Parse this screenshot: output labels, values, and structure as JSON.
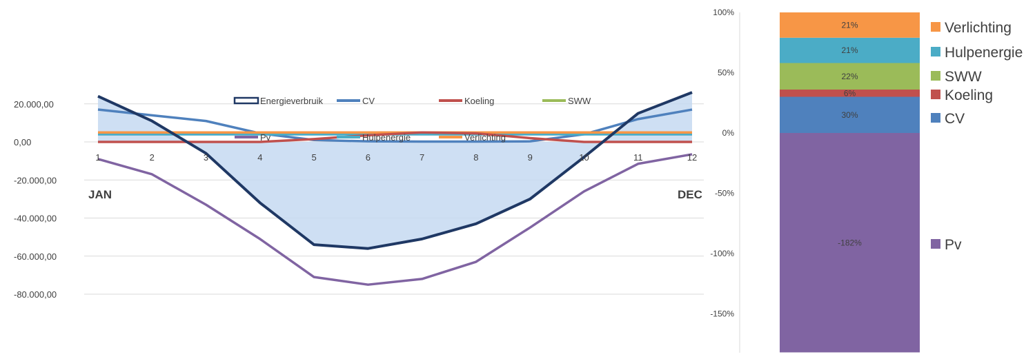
{
  "chart_data": [
    {
      "type": "line",
      "x": [
        1,
        2,
        3,
        4,
        5,
        6,
        7,
        8,
        9,
        10,
        11,
        12
      ],
      "x_markers": {
        "start": "JAN",
        "end": "DEC"
      },
      "ylim": [
        -90000,
        30000
      ],
      "yticks": [
        "20.000,00",
        "0,00",
        "-20.000,00",
        "-40.000,00",
        "-60.000,00",
        "-80.000,00"
      ],
      "ytick_values": [
        20000,
        0,
        -20000,
        -40000,
        -60000,
        -80000
      ],
      "legend": [
        "Energieverbruik",
        "CV",
        "Koeling",
        "SWW",
        "Pv",
        "Hulpenergie",
        "Verlichting"
      ],
      "series": [
        {
          "name": "Energieverbruik",
          "color": "#1F3864",
          "fill": "#C5D9F1",
          "values": [
            24000,
            11000,
            -6000,
            -32000,
            -54000,
            -56000,
            -51000,
            -43000,
            -30000,
            -8000,
            15000,
            26000
          ]
        },
        {
          "name": "CV",
          "color": "#4F81BD",
          "values": [
            17000,
            14000,
            11000,
            4500,
            1000,
            300,
            200,
            200,
            300,
            4000,
            12000,
            17000
          ]
        },
        {
          "name": "Koeling",
          "color": "#C0504D",
          "values": [
            0,
            0,
            0,
            0,
            1500,
            3500,
            5000,
            4500,
            2000,
            0,
            0,
            0
          ]
        },
        {
          "name": "SWW",
          "color": "#9BBB59",
          "values": [
            5000,
            4500,
            5000,
            5000,
            5000,
            4800,
            5000,
            5000,
            5000,
            5000,
            5000,
            5000
          ]
        },
        {
          "name": "Pv",
          "color": "#8064A2",
          "values": [
            -9000,
            -17000,
            -33000,
            -51000,
            -71000,
            -75000,
            -72000,
            -63000,
            -45000,
            -26000,
            -11500,
            -6500
          ]
        },
        {
          "name": "Hulpenergie",
          "color": "#4BACC6",
          "values": [
            4000,
            4000,
            4000,
            4000,
            4000,
            4000,
            4000,
            4000,
            4000,
            4000,
            4000,
            4000
          ]
        },
        {
          "name": "Verlichting",
          "color": "#F79646",
          "values": [
            5000,
            5000,
            5000,
            5000,
            5000,
            5000,
            5000,
            5000,
            5000,
            5000,
            5000,
            5000
          ]
        }
      ]
    },
    {
      "type": "bar",
      "stacked": true,
      "ylim": [
        -175,
        100
      ],
      "yticks": [
        "100%",
        "50%",
        "0%",
        "-50%",
        "-100%",
        "-150%"
      ],
      "ytick_values": [
        100,
        50,
        0,
        -50,
        -100,
        -150
      ],
      "series": [
        {
          "name": "CV",
          "value": 30,
          "label": "30%",
          "color": "#4F81BD"
        },
        {
          "name": "Koeling",
          "value": 6,
          "label": "6%",
          "color": "#C0504D"
        },
        {
          "name": "SWW",
          "value": 22,
          "label": "22%",
          "color": "#9BBB59"
        },
        {
          "name": "Hulpenergie",
          "value": 21,
          "label": "21%",
          "color": "#4BACC6"
        },
        {
          "name": "Verlichting",
          "value": 21,
          "label": "21%",
          "color": "#F79646"
        },
        {
          "name": "Pv",
          "value": -182,
          "label": "-182%",
          "color": "#8064A2"
        }
      ]
    }
  ]
}
